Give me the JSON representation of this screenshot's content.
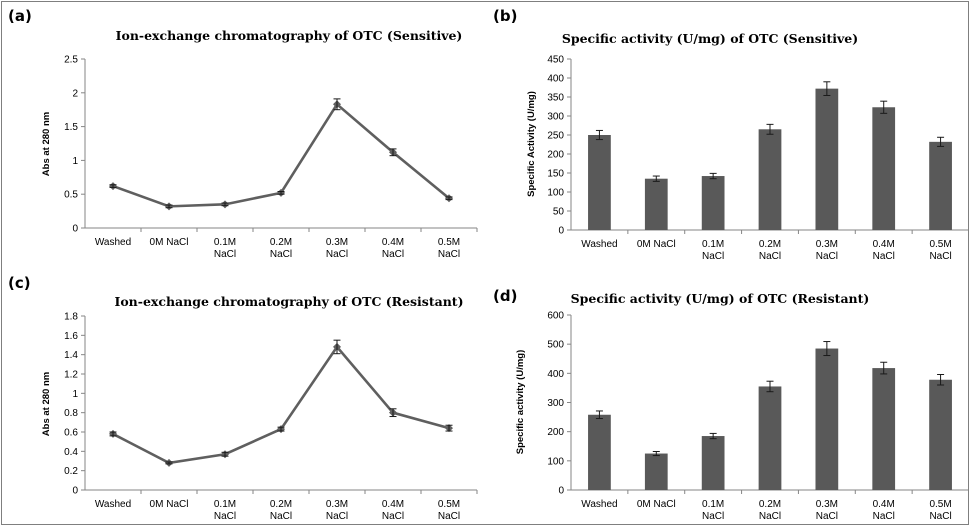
{
  "theme": {
    "line_color": "#5f5f5f",
    "bar_color": "#595959",
    "error_color": "#1a1a1a",
    "axis_color": "#868686"
  },
  "chart_data": [
    {
      "panel": "(a)",
      "type": "line",
      "title": "Ion-exchange chromatography of OTC (Sensitive)",
      "xlabel": "",
      "ylabel": "Abs at 280 nm",
      "categories": [
        [
          "Washed"
        ],
        [
          "0M NaCl"
        ],
        [
          "0.1M",
          "NaCl"
        ],
        [
          "0.2M",
          "NaCl"
        ],
        [
          "0.3M",
          "NaCl"
        ],
        [
          "0.4M",
          "NaCl"
        ],
        [
          "0.5M",
          "NaCl"
        ]
      ],
      "values": [
        0.62,
        0.32,
        0.35,
        0.52,
        1.83,
        1.12,
        0.44
      ],
      "errors": [
        0.02,
        0.02,
        0.02,
        0.02,
        0.08,
        0.05,
        0.02
      ],
      "ylim": [
        0,
        2.5
      ],
      "yticks": [
        "0",
        "0.5",
        "1",
        "1.5",
        "2",
        "2.5"
      ],
      "grid": false
    },
    {
      "panel": "(b)",
      "type": "bar",
      "title": "Specific activity (U/mg) of OTC (Sensitive)",
      "xlabel": "",
      "ylabel": "Specific Activity (U/mg)",
      "categories": [
        [
          "Washed"
        ],
        [
          "0M NaCl"
        ],
        [
          "0.1M",
          "NaCl"
        ],
        [
          "0.2M",
          "NaCl"
        ],
        [
          "0.3M",
          "NaCl"
        ],
        [
          "0.4M",
          "NaCl"
        ],
        [
          "0.5M",
          "NaCl"
        ]
      ],
      "values": [
        250,
        135,
        142,
        265,
        372,
        323,
        232
      ],
      "errors": [
        12,
        7,
        7,
        13,
        18,
        16,
        12
      ],
      "ylim": [
        0,
        450
      ],
      "yticks": [
        "0",
        "50",
        "100",
        "150",
        "200",
        "250",
        "300",
        "350",
        "400",
        "450"
      ],
      "grid": false
    },
    {
      "panel": "(c)",
      "type": "line",
      "title": "Ion-exchange chromatography of OTC (Resistant)",
      "xlabel": "",
      "ylabel": "Abs at 280 nm",
      "categories": [
        [
          "Washed"
        ],
        [
          "0M NaCl"
        ],
        [
          "0.1M",
          "NaCl"
        ],
        [
          "0.2M",
          "NaCl"
        ],
        [
          "0.3M",
          "NaCl"
        ],
        [
          "0.4M",
          "NaCl"
        ],
        [
          "0.5M",
          "NaCl"
        ]
      ],
      "values": [
        0.58,
        0.28,
        0.37,
        0.63,
        1.48,
        0.8,
        0.64
      ],
      "errors": [
        0.02,
        0.01,
        0.02,
        0.02,
        0.07,
        0.04,
        0.03
      ],
      "ylim": [
        0,
        1.8
      ],
      "yticks": [
        "0",
        "0.2",
        "0.4",
        "0.6",
        "0.8",
        "1",
        "1.2",
        "1.4",
        "1.6",
        "1.8"
      ],
      "grid": false
    },
    {
      "panel": "(d)",
      "type": "bar",
      "title": "Specific activity (U/mg) of OTC (Resistant)",
      "xlabel": "",
      "ylabel": "Specific activity (U/mg)",
      "categories": [
        [
          "Washed"
        ],
        [
          "0M NaCl"
        ],
        [
          "0.1M",
          "NaCl"
        ],
        [
          "0.2M",
          "NaCl"
        ],
        [
          "0.3M",
          "NaCl"
        ],
        [
          "0.4M",
          "NaCl"
        ],
        [
          "0.5M",
          "NaCl"
        ]
      ],
      "values": [
        258,
        125,
        185,
        355,
        485,
        418,
        378
      ],
      "errors": [
        13,
        7,
        9,
        18,
        24,
        20,
        18
      ],
      "ylim": [
        0,
        600
      ],
      "yticks": [
        "0",
        "100",
        "200",
        "300",
        "400",
        "500",
        "600"
      ],
      "grid": false
    }
  ]
}
